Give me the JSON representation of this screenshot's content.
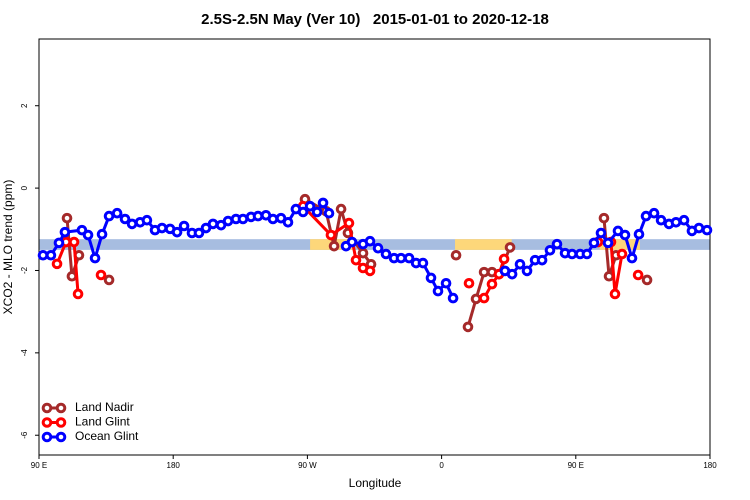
{
  "chart_data": {
    "type": "line",
    "title": "2.5S-2.5N May (Ver 10)   2015-01-01 to 2020-12-18",
    "x_label": "Longitude",
    "y_label": "XCO2 - MLO trend (ppm)",
    "xlim": [
      90,
      540
    ],
    "ylim": [
      -6.48,
      3.62
    ],
    "xticks": [
      {
        "value": 90,
        "label": "90 E"
      },
      {
        "value": 180,
        "label": "180"
      },
      {
        "value": 270,
        "label": "90 W"
      },
      {
        "value": 360,
        "label": "0"
      },
      {
        "value": 450,
        "label": "90 E"
      },
      {
        "value": 540,
        "label": "180"
      }
    ],
    "yticks": [
      2,
      0,
      -2,
      -4,
      -6
    ],
    "legend": "bottom-left",
    "band": {
      "ylim": [
        -1.5,
        -1.24
      ],
      "color": "#a7bde0",
      "highlights": [
        {
          "xlim": [
            271.8,
            302
          ],
          "color": "#fdd77a"
        },
        {
          "xlim": [
            369,
            407
          ],
          "color": "#fdd77a"
        },
        {
          "xlim": [
            466,
            493
          ],
          "color": "#fdd77a"
        }
      ]
    },
    "series": [
      {
        "name": "Land Nadir",
        "color": "#a52a2a",
        "x": [
          108.8,
          112.1,
          116.8,
          null,
          137.0,
          null,
          268.4,
          282.5,
          287.9,
          292.6,
          297.2,
          307.3,
          312.7,
          null,
          369.7,
          null,
          377.7,
          383.1,
          388.5,
          393.8,
          398.5,
          405.9,
          null,
          468.9,
          472.3,
          477.0,
          null,
          497.8
        ],
        "values": [
          -0.73,
          -2.14,
          -1.63,
          null,
          -2.23,
          null,
          -0.27,
          -0.56,
          -1.41,
          -0.51,
          -1.09,
          -1.58,
          -1.85,
          null,
          -1.63,
          null,
          -3.37,
          -2.69,
          -2.04,
          -2.04,
          -2.09,
          -1.44,
          null,
          -0.73,
          -2.14,
          -1.63,
          null,
          -2.23
        ]
      },
      {
        "name": "Land Glint",
        "color": "#ff0000",
        "x": [
          102.1,
          108.1,
          113.5,
          116.2,
          null,
          131.6,
          null,
          267.1,
          285.8,
          297.9,
          302.6,
          307.3,
          312.0,
          null,
          378.4,
          null,
          388.5,
          393.8,
          398.5,
          401.9,
          null,
          464.9,
          473.6,
          476.3,
          481.0,
          null,
          491.8
        ],
        "values": [
          -1.84,
          -1.31,
          -1.31,
          -2.57,
          null,
          -2.11,
          null,
          -0.44,
          -1.14,
          -0.85,
          -1.75,
          -1.94,
          -2.01,
          null,
          -2.31,
          null,
          -2.67,
          -2.33,
          -2.09,
          -1.72,
          null,
          -1.31,
          -1.31,
          -2.57,
          -1.6,
          null,
          -2.11
        ]
      },
      {
        "name": "Ocean Glint",
        "color": "#0000ff",
        "x": [
          92.7,
          98.0,
          103.4,
          107.4,
          118.8,
          122.9,
          127.6,
          132.3,
          137.0,
          142.4,
          147.7,
          152.4,
          157.8,
          162.4,
          167.8,
          172.5,
          177.9,
          182.6,
          187.3,
          192.6,
          197.3,
          202.0,
          206.7,
          212.1,
          216.8,
          222.1,
          226.8,
          232.2,
          236.9,
          242.2,
          246.9,
          252.3,
          257.0,
          262.3,
          267.1,
          271.8,
          276.5,
          280.5,
          284.5,
          null,
          295.9,
          299.9,
          307.3,
          312.0,
          317.4,
          322.7,
          328.1,
          332.8,
          338.2,
          342.9,
          347.5,
          352.9,
          357.6,
          363.0,
          367.7,
          null,
          402.5,
          407.3,
          412.6,
          417.3,
          422.7,
          427.4,
          432.7,
          437.4,
          442.8,
          447.5,
          452.9,
          457.5,
          462.2,
          466.9,
          471.6,
          478.3,
          483.0,
          487.7,
          492.4,
          497.1,
          502.5,
          507.2,
          512.5,
          517.2,
          522.6,
          527.9,
          532.6,
          538.0
        ],
        "values": [
          -1.63,
          -1.63,
          -1.33,
          -1.07,
          -1.02,
          -1.14,
          -1.7,
          -1.12,
          -0.68,
          -0.61,
          -0.75,
          -0.87,
          -0.83,
          -0.78,
          -1.02,
          -0.97,
          -0.99,
          -1.07,
          -0.92,
          -1.09,
          -1.09,
          -0.97,
          -0.87,
          -0.9,
          -0.8,
          -0.75,
          -0.75,
          -0.7,
          -0.68,
          -0.66,
          -0.75,
          -0.73,
          -0.83,
          -0.51,
          -0.58,
          -0.44,
          -0.58,
          -0.36,
          -0.61,
          null,
          -1.41,
          -1.31,
          -1.36,
          -1.29,
          -1.46,
          -1.6,
          -1.7,
          -1.7,
          -1.7,
          -1.82,
          -1.82,
          -2.18,
          -2.5,
          -2.31,
          -2.67,
          null,
          -2.01,
          -2.09,
          -1.85,
          -2.01,
          -1.75,
          -1.75,
          -1.51,
          -1.36,
          -1.58,
          -1.6,
          -1.6,
          -1.6,
          -1.33,
          -1.09,
          -1.33,
          -1.04,
          -1.14,
          -1.7,
          -1.12,
          -0.68,
          -0.61,
          -0.78,
          -0.87,
          -0.83,
          -0.78,
          -1.04,
          -0.97,
          -1.02
        ]
      }
    ]
  }
}
